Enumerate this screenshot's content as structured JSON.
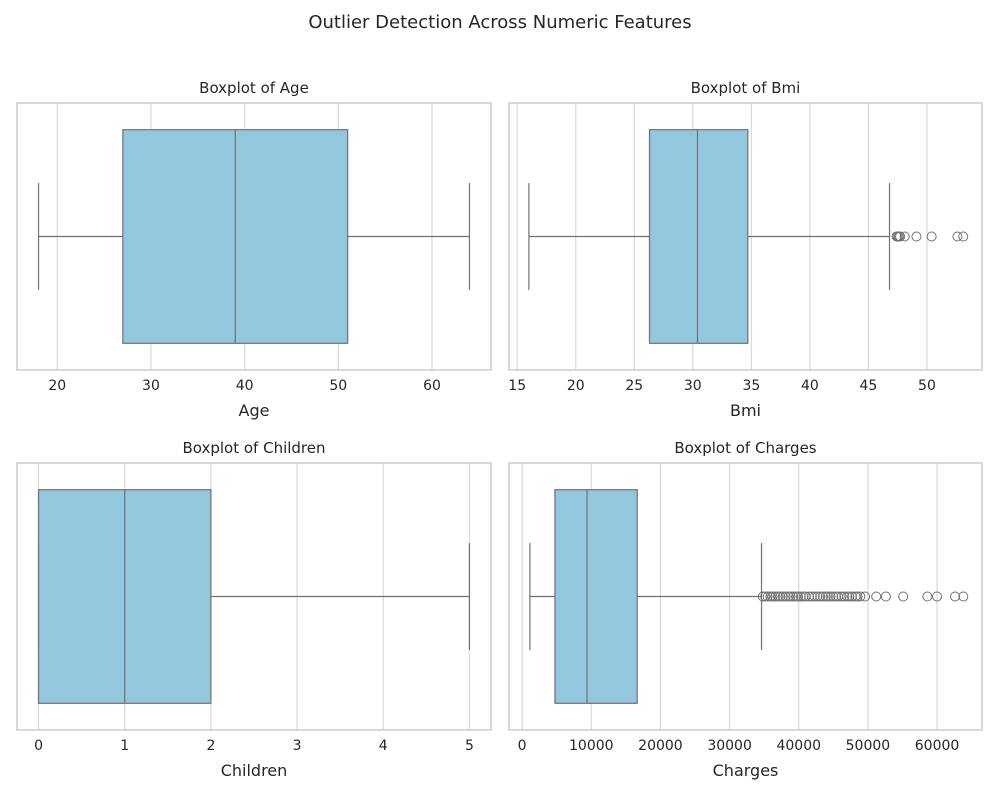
{
  "figure_title": "Outlier Detection Across Numeric Features",
  "colors": {
    "box_fill": "#92c7de",
    "line": "#707070",
    "grid": "#d9d9d9",
    "frame": "#cccccc"
  },
  "chart_data": [
    {
      "type": "box",
      "title": "Boxplot of Age",
      "xlabel": "Age",
      "xlim": [
        15.7,
        66.3
      ],
      "ticks": [
        20,
        30,
        40,
        50,
        60
      ],
      "grid": true,
      "stats": {
        "whisker_low": 18,
        "q1": 27,
        "median": 39,
        "q3": 51,
        "whisker_high": 64
      },
      "outliers": []
    },
    {
      "type": "box",
      "title": "Boxplot of Bmi",
      "xlabel": "Bmi",
      "xlim": [
        14.3,
        54.7
      ],
      "ticks": [
        15,
        20,
        25,
        30,
        35,
        40,
        45,
        50
      ],
      "grid": true,
      "stats": {
        "whisker_low": 16.0,
        "q1": 26.3,
        "median": 30.4,
        "q3": 34.7,
        "whisker_high": 46.8
      },
      "outliers": [
        47.4,
        47.5,
        47.6,
        47.7,
        48.1,
        49.1,
        50.4,
        52.6,
        53.1
      ]
    },
    {
      "type": "box",
      "title": "Boxplot of Children",
      "xlabel": "Children",
      "xlim": [
        -0.25,
        5.25
      ],
      "ticks": [
        0,
        1,
        2,
        3,
        4,
        5
      ],
      "grid": true,
      "stats": {
        "whisker_low": 0,
        "q1": 0,
        "median": 1,
        "q3": 2,
        "whisker_high": 5
      },
      "outliers": []
    },
    {
      "type": "box",
      "title": "Boxplot of Charges",
      "xlabel": "Charges",
      "xlim": [
        -1900,
        66500
      ],
      "ticks": [
        0,
        10000,
        20000,
        30000,
        40000,
        50000,
        60000
      ],
      "grid": true,
      "stats": {
        "whisker_low": 1122,
        "q1": 4740,
        "median": 9382,
        "q3": 16640,
        "whisker_high": 34617
      },
      "outliers": [
        34800,
        35150,
        35500,
        35900,
        36200,
        36600,
        37000,
        37300,
        37700,
        38100,
        38500,
        38800,
        39200,
        39600,
        39900,
        40300,
        40700,
        41000,
        41500,
        41900,
        42300,
        42700,
        43100,
        43500,
        43900,
        44200,
        44600,
        45000,
        45400,
        45700,
        46200,
        46600,
        47000,
        47300,
        47700,
        48200,
        48500,
        48900,
        49600,
        51200,
        52600,
        55100,
        58600,
        60000,
        62600,
        63800
      ]
    }
  ]
}
